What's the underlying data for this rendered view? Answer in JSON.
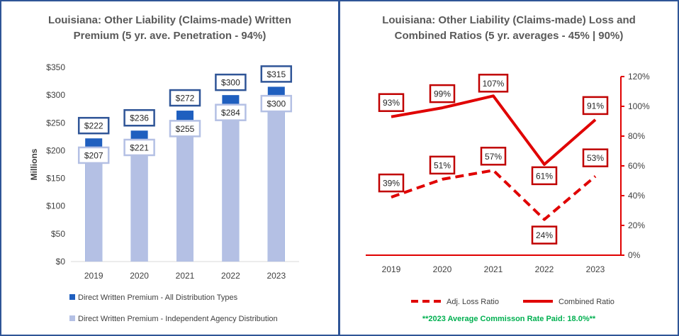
{
  "colors": {
    "border": "#2f5597",
    "bar_all": "#1f5fbf",
    "bar_agency": "#b4c0e4",
    "label_box_all": "#2f5597",
    "label_box_agency": "#b4c0e4",
    "ratio_line": "#e00000",
    "axis_text": "#404040",
    "footnote": "#00b050"
  },
  "chart_data": [
    {
      "type": "bar",
      "title": "Louisiana: Other Liability (Claims-made) Written Premium (5 yr. ave. Penetration - 94%)",
      "title_lines": [
        "Louisiana: Other Liability (Claims-made) Written",
        "Premium (5 yr. ave. Penetration - 94%)"
      ],
      "ylabel": "Millions",
      "xlabel": "",
      "ylim": [
        0,
        350
      ],
      "yticks": [
        0,
        50,
        100,
        150,
        200,
        250,
        300,
        350
      ],
      "ytick_labels": [
        "$0",
        "$50",
        "$100",
        "$150",
        "$200",
        "$250",
        "$300",
        "$350"
      ],
      "categories": [
        "2019",
        "2020",
        "2021",
        "2022",
        "2023"
      ],
      "series": [
        {
          "name": "Direct Written Premium - All Distribution Types",
          "values": [
            222,
            236,
            272,
            300,
            315
          ],
          "labels": [
            "$222",
            "$236",
            "$272",
            "$300",
            "$315"
          ]
        },
        {
          "name": "Direct Written Premium - Independent Agency Distribution",
          "values": [
            207,
            221,
            255,
            284,
            300
          ],
          "labels": [
            "$207",
            "$221",
            "$255",
            "$284",
            "$300"
          ]
        }
      ],
      "legend": "bottom"
    },
    {
      "type": "line",
      "title": "Louisiana: Other Liability (Claims-made) Loss and Combined Ratios (5 yr. averages - 45% | 90%)",
      "title_lines": [
        "Louisiana: Other Liability (Claims-made) Loss and",
        "Combined Ratios (5 yr. averages - 45% | 90%)"
      ],
      "xlabel": "",
      "ylabel": "",
      "ylim": [
        0,
        120
      ],
      "yticks": [
        0,
        20,
        40,
        60,
        80,
        100,
        120
      ],
      "ytick_labels": [
        "0%",
        "20%",
        "40%",
        "60%",
        "80%",
        "100%",
        "120%"
      ],
      "y_axis_side": "right",
      "categories": [
        "2019",
        "2020",
        "2021",
        "2022",
        "2023"
      ],
      "series": [
        {
          "name": "Adj. Loss Ratio",
          "style": "dashed",
          "values": [
            39,
            51,
            57,
            24,
            53
          ],
          "labels": [
            "39%",
            "51%",
            "57%",
            "24%",
            "53%"
          ]
        },
        {
          "name": "Combined Ratio",
          "style": "solid",
          "values": [
            93,
            99,
            107,
            61,
            91
          ],
          "labels": [
            "93%",
            "99%",
            "107%",
            "61%",
            "91%"
          ]
        }
      ],
      "legend": "bottom",
      "footnote": "**2023 Average Commisson Rate Paid: 18.0%**"
    }
  ]
}
